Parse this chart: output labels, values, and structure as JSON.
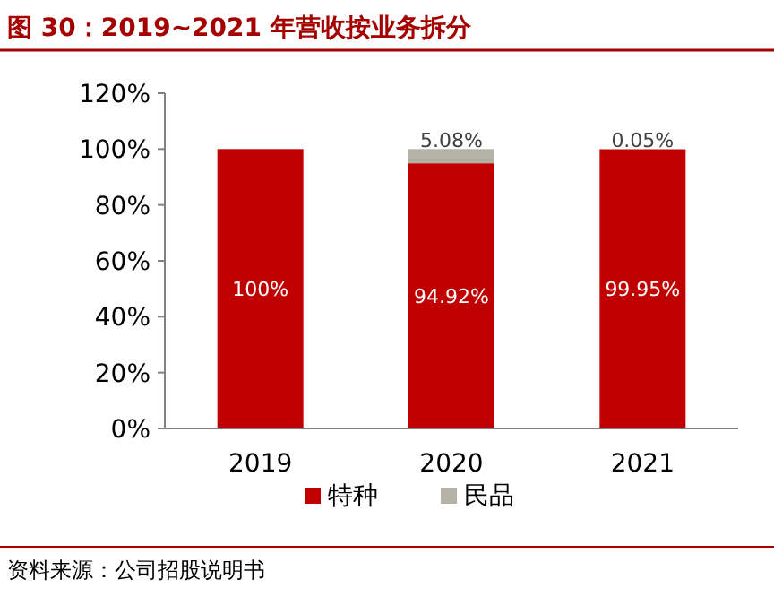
{
  "chart_data": {
    "type": "bar",
    "title": "图 30：2019~2021 年营收按业务拆分",
    "categories": [
      "2019",
      "2020",
      "2021"
    ],
    "stacked": true,
    "series": [
      {
        "name": "特种",
        "color": "#c00000",
        "values": [
          100,
          94.92,
          99.95
        ],
        "value_labels": [
          "100%",
          "94.92%",
          "99.95%"
        ]
      },
      {
        "name": "民品",
        "color": "#b4b2a4",
        "values": [
          0,
          5.08,
          0.05
        ],
        "value_labels": [
          null,
          "5.08%",
          "0.05%"
        ]
      }
    ],
    "ylim": [
      0,
      120
    ],
    "yticks": [
      {
        "value": 0,
        "label": "0%"
      },
      {
        "value": 20,
        "label": "20%"
      },
      {
        "value": 40,
        "label": "40%"
      },
      {
        "value": 60,
        "label": "60%"
      },
      {
        "value": 80,
        "label": "80%"
      },
      {
        "value": 100,
        "label": "100%"
      },
      {
        "value": 120,
        "label": "120%"
      }
    ],
    "grid": false,
    "legend": "bottom",
    "annotations": [
      "资料来源：公司招股说明书"
    ]
  }
}
